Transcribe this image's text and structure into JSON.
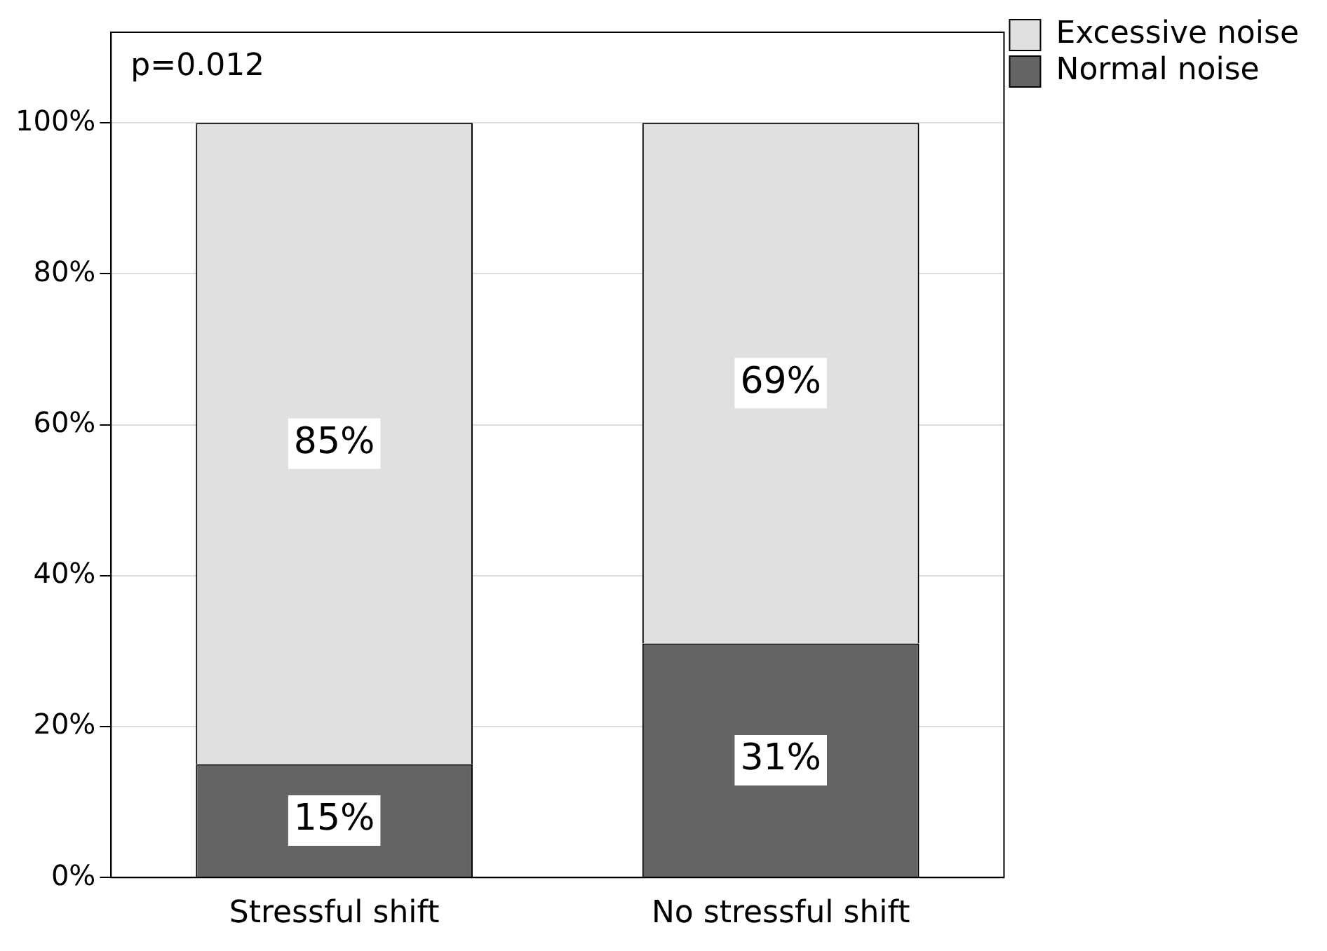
{
  "chart_data": {
    "type": "bar",
    "stacked": true,
    "categories": [
      "Stressful shift",
      "No stressful shift"
    ],
    "series": [
      {
        "name": "Normal noise",
        "color": "#646464",
        "values": [
          15,
          31
        ],
        "value_labels": [
          "15%",
          "31%"
        ]
      },
      {
        "name": "Excessive noise",
        "color": "#e0e0e0",
        "values": [
          85,
          69
        ],
        "value_labels": [
          "85%",
          "69%"
        ]
      }
    ],
    "ylim": [
      0,
      112
    ],
    "yticks": [
      {
        "value": 0,
        "label": "0%"
      },
      {
        "value": 20,
        "label": "20%"
      },
      {
        "value": 40,
        "label": "40%"
      },
      {
        "value": 60,
        "label": "60%"
      },
      {
        "value": 80,
        "label": "80%"
      },
      {
        "value": 100,
        "label": "100%"
      }
    ],
    "grid": "y",
    "legend": "top right",
    "annotations": [
      "p=0.012"
    ]
  }
}
